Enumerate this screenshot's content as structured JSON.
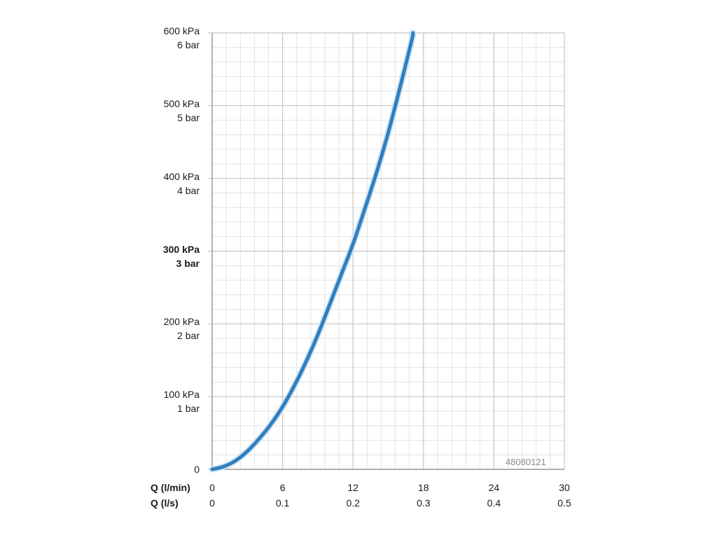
{
  "chart_data": {
    "type": "line",
    "x_rows": [
      {
        "label": "Q (l/min)",
        "ticks": [
          "0",
          "6",
          "12",
          "18",
          "24",
          "30"
        ]
      },
      {
        "label": "Q (l/s)",
        "ticks": [
          "0",
          "0.1",
          "0.2",
          "0.3",
          "0.4",
          "0.5"
        ]
      }
    ],
    "xlim": [
      0,
      30
    ],
    "ylim": [
      0,
      600
    ],
    "y_ticks": [
      {
        "value": 0,
        "lines": [
          "0"
        ],
        "bold": false
      },
      {
        "value": 100,
        "lines": [
          "100 kPa",
          "1 bar"
        ],
        "bold": false
      },
      {
        "value": 200,
        "lines": [
          "200 kPa",
          "2 bar"
        ],
        "bold": false
      },
      {
        "value": 300,
        "lines": [
          "300 kPa",
          "3 bar"
        ],
        "bold": true
      },
      {
        "value": 400,
        "lines": [
          "400 kPa",
          "4 bar"
        ],
        "bold": false
      },
      {
        "value": 500,
        "lines": [
          "500 kPa",
          "5 bar"
        ],
        "bold": false
      },
      {
        "value": 600,
        "lines": [
          "600 kPa",
          "6 bar"
        ],
        "bold": false
      }
    ],
    "grid": true,
    "series": [
      {
        "color": "#2f7fbf",
        "x": [
          0,
          1,
          2,
          3,
          4,
          5,
          6,
          7,
          8,
          9,
          10,
          11,
          12,
          13,
          14,
          15,
          16,
          17,
          17.1
        ],
        "y": [
          0,
          4,
          12,
          25,
          42,
          62,
          86,
          115,
          148,
          185,
          226,
          268,
          310,
          358,
          408,
          463,
          525,
          590,
          600
        ]
      }
    ],
    "annotation": "48080121"
  }
}
